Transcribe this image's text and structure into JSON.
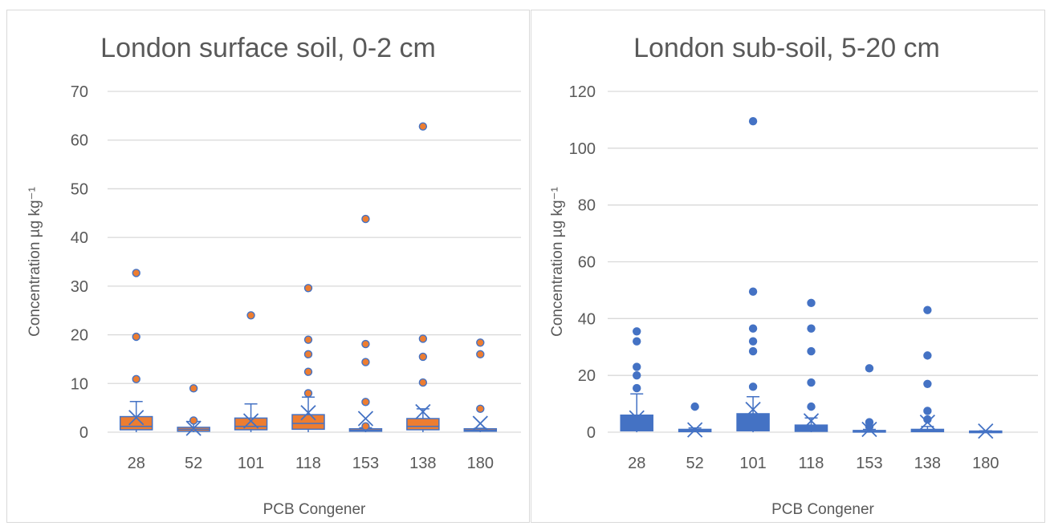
{
  "chart_data": [
    {
      "type": "box",
      "title": "London surface soil, 0-2 cm",
      "xlabel": "PCB Congener",
      "ylabel": "Concentration µg kg⁻¹",
      "ylim": [
        0,
        70
      ],
      "yticks": [
        0,
        10,
        20,
        30,
        40,
        50,
        60,
        70
      ],
      "grid": true,
      "color": "#ED7D31",
      "edge_color": "#4472C4",
      "categories": [
        "28",
        "52",
        "101",
        "118",
        "153",
        "138",
        "180"
      ],
      "boxes": [
        {
          "q1": 0.5,
          "median": 1.2,
          "q3": 3.2,
          "whisker_low": 0,
          "whisker_high": 6.3,
          "mean": 3.0,
          "outliers": [
            10.9,
            19.6,
            32.7
          ]
        },
        {
          "q1": 0.2,
          "median": 0.6,
          "q3": 1.0,
          "whisker_low": 0,
          "whisker_high": 2.2,
          "mean": 0.8,
          "outliers": [
            2.4,
            9.0
          ]
        },
        {
          "q1": 0.5,
          "median": 1.2,
          "q3": 2.9,
          "whisker_low": 0,
          "whisker_high": 5.8,
          "mean": 2.3,
          "outliers": [
            24.0
          ]
        },
        {
          "q1": 0.6,
          "median": 1.8,
          "q3": 3.6,
          "whisker_low": 0,
          "whisker_high": 7.2,
          "mean": 4.0,
          "outliers": [
            8.0,
            12.4,
            16.0,
            19.0,
            29.6
          ]
        },
        {
          "q1": 0.2,
          "median": 0.4,
          "q3": 0.7,
          "whisker_low": 0,
          "whisker_high": 0.9,
          "mean": 2.8,
          "outliers": [
            1.2,
            6.2,
            14.4,
            18.1,
            43.8
          ]
        },
        {
          "q1": 0.5,
          "median": 1.2,
          "q3": 2.8,
          "whisker_low": 0,
          "whisker_high": 4.8,
          "mean": 4.2,
          "outliers": [
            10.2,
            15.5,
            19.2,
            62.8
          ]
        },
        {
          "q1": 0.2,
          "median": 0.4,
          "q3": 0.7,
          "whisker_low": 0,
          "whisker_high": 0.8,
          "mean": 1.8,
          "outliers": [
            4.8,
            16.0,
            18.4
          ]
        }
      ]
    },
    {
      "type": "box",
      "title": "London sub-soil, 5-20 cm",
      "xlabel": "PCB Congener",
      "ylabel": "Concentration µg kg⁻¹",
      "ylim": [
        0,
        120
      ],
      "yticks": [
        0,
        20,
        40,
        60,
        80,
        100,
        120
      ],
      "grid": true,
      "color": "#4472C4",
      "edge_color": "#4472C4",
      "categories": [
        "28",
        "52",
        "101",
        "118",
        "153",
        "138",
        "180"
      ],
      "boxes": [
        {
          "q1": 0.5,
          "median": 1.5,
          "q3": 6.0,
          "whisker_low": 0,
          "whisker_high": 13.5,
          "mean": 5.0,
          "outliers": [
            15.5,
            20.0,
            23.0,
            32.0,
            35.5
          ]
        },
        {
          "q1": 0.2,
          "median": 0.5,
          "q3": 1.0,
          "whisker_low": 0,
          "whisker_high": 1.5,
          "mean": 0.8,
          "outliers": [
            9.0
          ]
        },
        {
          "q1": 0.5,
          "median": 1.5,
          "q3": 6.5,
          "whisker_low": 0,
          "whisker_high": 12.5,
          "mean": 8.0,
          "outliers": [
            16.0,
            28.5,
            32.0,
            36.5,
            49.5,
            109.5
          ]
        },
        {
          "q1": 0.3,
          "median": 1.0,
          "q3": 2.5,
          "whisker_low": 0,
          "whisker_high": 5.0,
          "mean": 4.0,
          "outliers": [
            9.0,
            17.5,
            28.5,
            36.5,
            45.5
          ]
        },
        {
          "q1": 0.1,
          "median": 0.3,
          "q3": 0.6,
          "whisker_low": 0,
          "whisker_high": 1.0,
          "mean": 1.0,
          "outliers": [
            2.0,
            3.5,
            22.5
          ]
        },
        {
          "q1": 0.2,
          "median": 0.5,
          "q3": 1.0,
          "whisker_low": 0,
          "whisker_high": 2.0,
          "mean": 3.5,
          "outliers": [
            4.5,
            7.5,
            17.0,
            27.0,
            43.0
          ]
        },
        {
          "q1": 0.1,
          "median": 0.2,
          "q3": 0.4,
          "whisker_low": 0,
          "whisker_high": 0.5,
          "mean": 0.4,
          "outliers": []
        }
      ]
    }
  ]
}
